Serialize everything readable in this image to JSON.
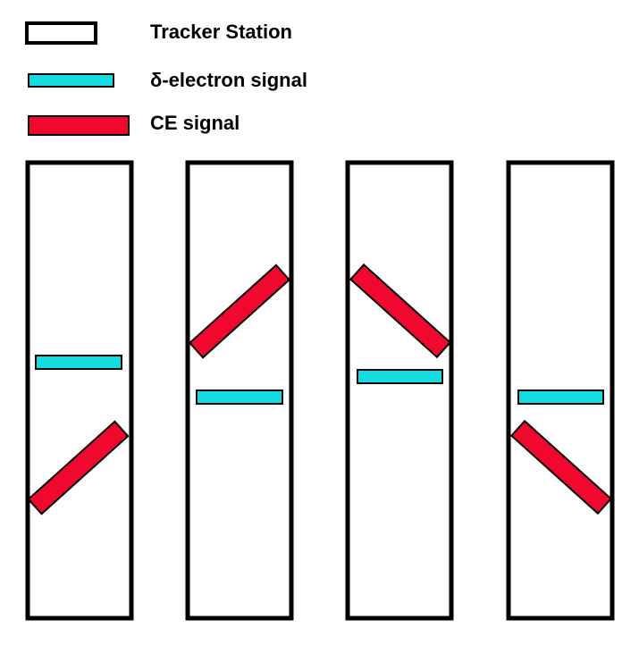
{
  "legend": {
    "tracker_station_label": "Tracker Station",
    "delta_electron_label": "δ-electron signal",
    "ce_label": "CE signal"
  },
  "colors": {
    "station_fill": "#ffffff",
    "outline": "#000000",
    "delta_electron": "#12dde0",
    "ce": "#f0082e"
  },
  "stations": [
    {
      "delta_signal": "horizontal",
      "ce_signal": "diagonal-up-right",
      "ce_position": "below"
    },
    {
      "delta_signal": "horizontal",
      "ce_signal": "diagonal-up-right",
      "ce_position": "above"
    },
    {
      "delta_signal": "horizontal",
      "ce_signal": "diagonal-down-right",
      "ce_position": "above"
    },
    {
      "delta_signal": "horizontal",
      "ce_signal": "diagonal-down-right",
      "ce_position": "below"
    }
  ]
}
